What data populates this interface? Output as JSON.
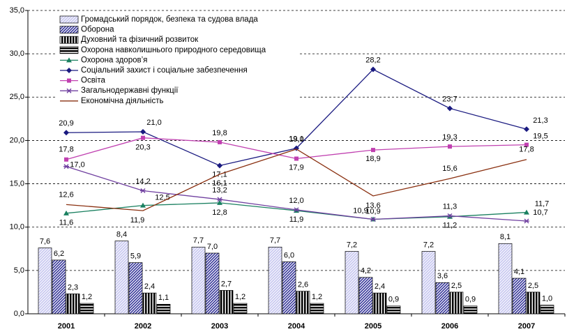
{
  "chart_data": {
    "type": "combo",
    "categories": [
      "2001",
      "2002",
      "2003",
      "2004",
      "2005",
      "2006",
      "2007"
    ],
    "ylim": [
      0,
      35
    ],
    "yticks": [
      {
        "value": 0,
        "label": "0,0"
      },
      {
        "value": 5,
        "label": "5,0"
      },
      {
        "value": 10,
        "label": "10,0"
      },
      {
        "value": 15,
        "label": "15,0"
      },
      {
        "value": 20,
        "label": "20,0"
      },
      {
        "value": 25,
        "label": "25,0"
      },
      {
        "value": 30,
        "label": "30,0"
      },
      {
        "value": 35,
        "label": "35,0"
      }
    ],
    "grid": true,
    "legend": "top-left",
    "series": [
      {
        "name": "Громадський порядок, безпека та судова влада",
        "type": "bar",
        "pattern": "diagonal",
        "color": "#c8c8f0",
        "values": [
          7.6,
          8.4,
          7.7,
          7.7,
          7.2,
          7.2,
          8.1
        ],
        "value_labels": [
          "7,6",
          "8,4",
          "7,7",
          "7,7",
          "7,2",
          "7,2",
          "8,1"
        ]
      },
      {
        "name": "Оборона",
        "type": "bar",
        "pattern": "diagonal",
        "color": "#333399",
        "values": [
          6.2,
          5.9,
          7.0,
          6.0,
          4.2,
          3.6,
          4.1
        ],
        "value_labels": [
          "6,2",
          "5,9",
          "7,0",
          "6,0",
          "4,2",
          "3,6",
          "4,1"
        ]
      },
      {
        "name": "Духовний та фізичний розвиток",
        "type": "bar",
        "pattern": "vertical",
        "color": "#000000",
        "values": [
          2.3,
          2.4,
          2.7,
          2.6,
          2.4,
          2.5,
          2.5
        ],
        "value_labels": [
          "2,3",
          "2,4",
          "2,7",
          "2,6",
          "2,4",
          "2,5",
          "2,5"
        ]
      },
      {
        "name": "Охорона навколишнього природного середовища",
        "type": "bar",
        "pattern": "horizontal",
        "color": "#000000",
        "values": [
          1.2,
          1.1,
          1.2,
          1.2,
          0.9,
          0.9,
          1.0
        ],
        "value_labels": [
          "1,2",
          "1,1",
          "1,2",
          "1,2",
          "0,9",
          "0,9",
          "1,0"
        ]
      },
      {
        "name": "Охорона здоров’я",
        "type": "line",
        "marker": "triangle",
        "color": "#1a8060",
        "values": [
          11.6,
          12.5,
          12.8,
          11.9,
          10.9,
          11.2,
          11.7
        ],
        "value_labels": [
          "11,6",
          "12,5",
          "12,8",
          "11,9",
          "10,9",
          "11,2",
          "11,7"
        ]
      },
      {
        "name": "Соціальний захист і соціальне забезпечення",
        "type": "line",
        "marker": "diamond",
        "color": "#1a1a80",
        "values": [
          20.9,
          21.0,
          17.1,
          19.1,
          28.2,
          23.7,
          21.3
        ],
        "value_labels": [
          "20,9",
          "21,0",
          "17,1",
          "19,1",
          "28,2",
          "23,7",
          "21,3"
        ]
      },
      {
        "name": "Освіта",
        "type": "line",
        "marker": "square",
        "color": "#c040b0",
        "values": [
          17.8,
          20.3,
          19.8,
          17.9,
          18.9,
          19.3,
          19.5
        ],
        "value_labels": [
          "17,8",
          "20,3",
          "19,8",
          "17,9",
          "18,9",
          "19,3",
          "19,5"
        ]
      },
      {
        "name": "Загальнодержавні функції",
        "type": "line",
        "marker": "star",
        "color": "#7040a0",
        "values": [
          17.0,
          14.2,
          13.2,
          12.0,
          10.9,
          11.3,
          10.7
        ],
        "value_labels": [
          "17,0",
          "14,2",
          "13,2",
          "12,0",
          "10,9",
          "11,3",
          "10,7"
        ]
      },
      {
        "name": "Економічна діяльність",
        "type": "line",
        "marker": "none",
        "color": "#8a3010",
        "values": [
          12.6,
          11.9,
          16.1,
          19.0,
          13.6,
          15.6,
          17.8
        ],
        "value_labels": [
          "12,6",
          "11,9",
          "16,1",
          "19,0",
          "13,6",
          "15,6",
          "17,8"
        ]
      }
    ]
  }
}
